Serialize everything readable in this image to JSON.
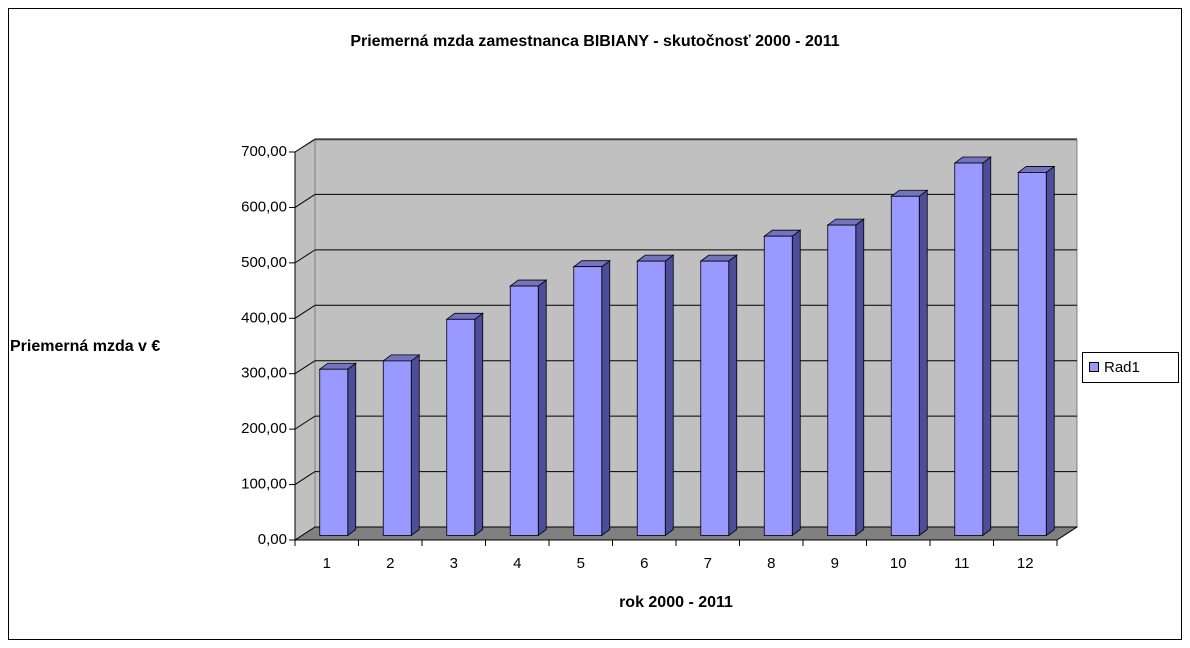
{
  "chart_data": {
    "type": "bar3d",
    "title": "Priemerná mzda zamestnanca BIBIANY - skutočnosť 2000 -  2011",
    "y_label": "Priemerná mzda v €",
    "x_label": "rok 2000 - 2011",
    "categories": [
      "1",
      "2",
      "3",
      "4",
      "5",
      "6",
      "7",
      "8",
      "9",
      "10",
      "11",
      "12"
    ],
    "series": [
      {
        "name": "Rad1",
        "color": "#9999ff",
        "values": [
          300,
          315,
          390,
          450,
          485,
          495,
          495,
          540,
          560,
          612,
          672,
          655
        ]
      }
    ],
    "ylim": [
      0,
      700
    ],
    "yticks": [
      {
        "value": 0,
        "label": "0,00"
      },
      {
        "value": 100,
        "label": "100,00"
      },
      {
        "value": 200,
        "label": "200,00"
      },
      {
        "value": 300,
        "label": "300,00"
      },
      {
        "value": 400,
        "label": "400,00"
      },
      {
        "value": 500,
        "label": "500,00"
      },
      {
        "value": 600,
        "label": "600,00"
      },
      {
        "value": 700,
        "label": "700,00"
      }
    ],
    "grid": true,
    "legend": "right"
  }
}
